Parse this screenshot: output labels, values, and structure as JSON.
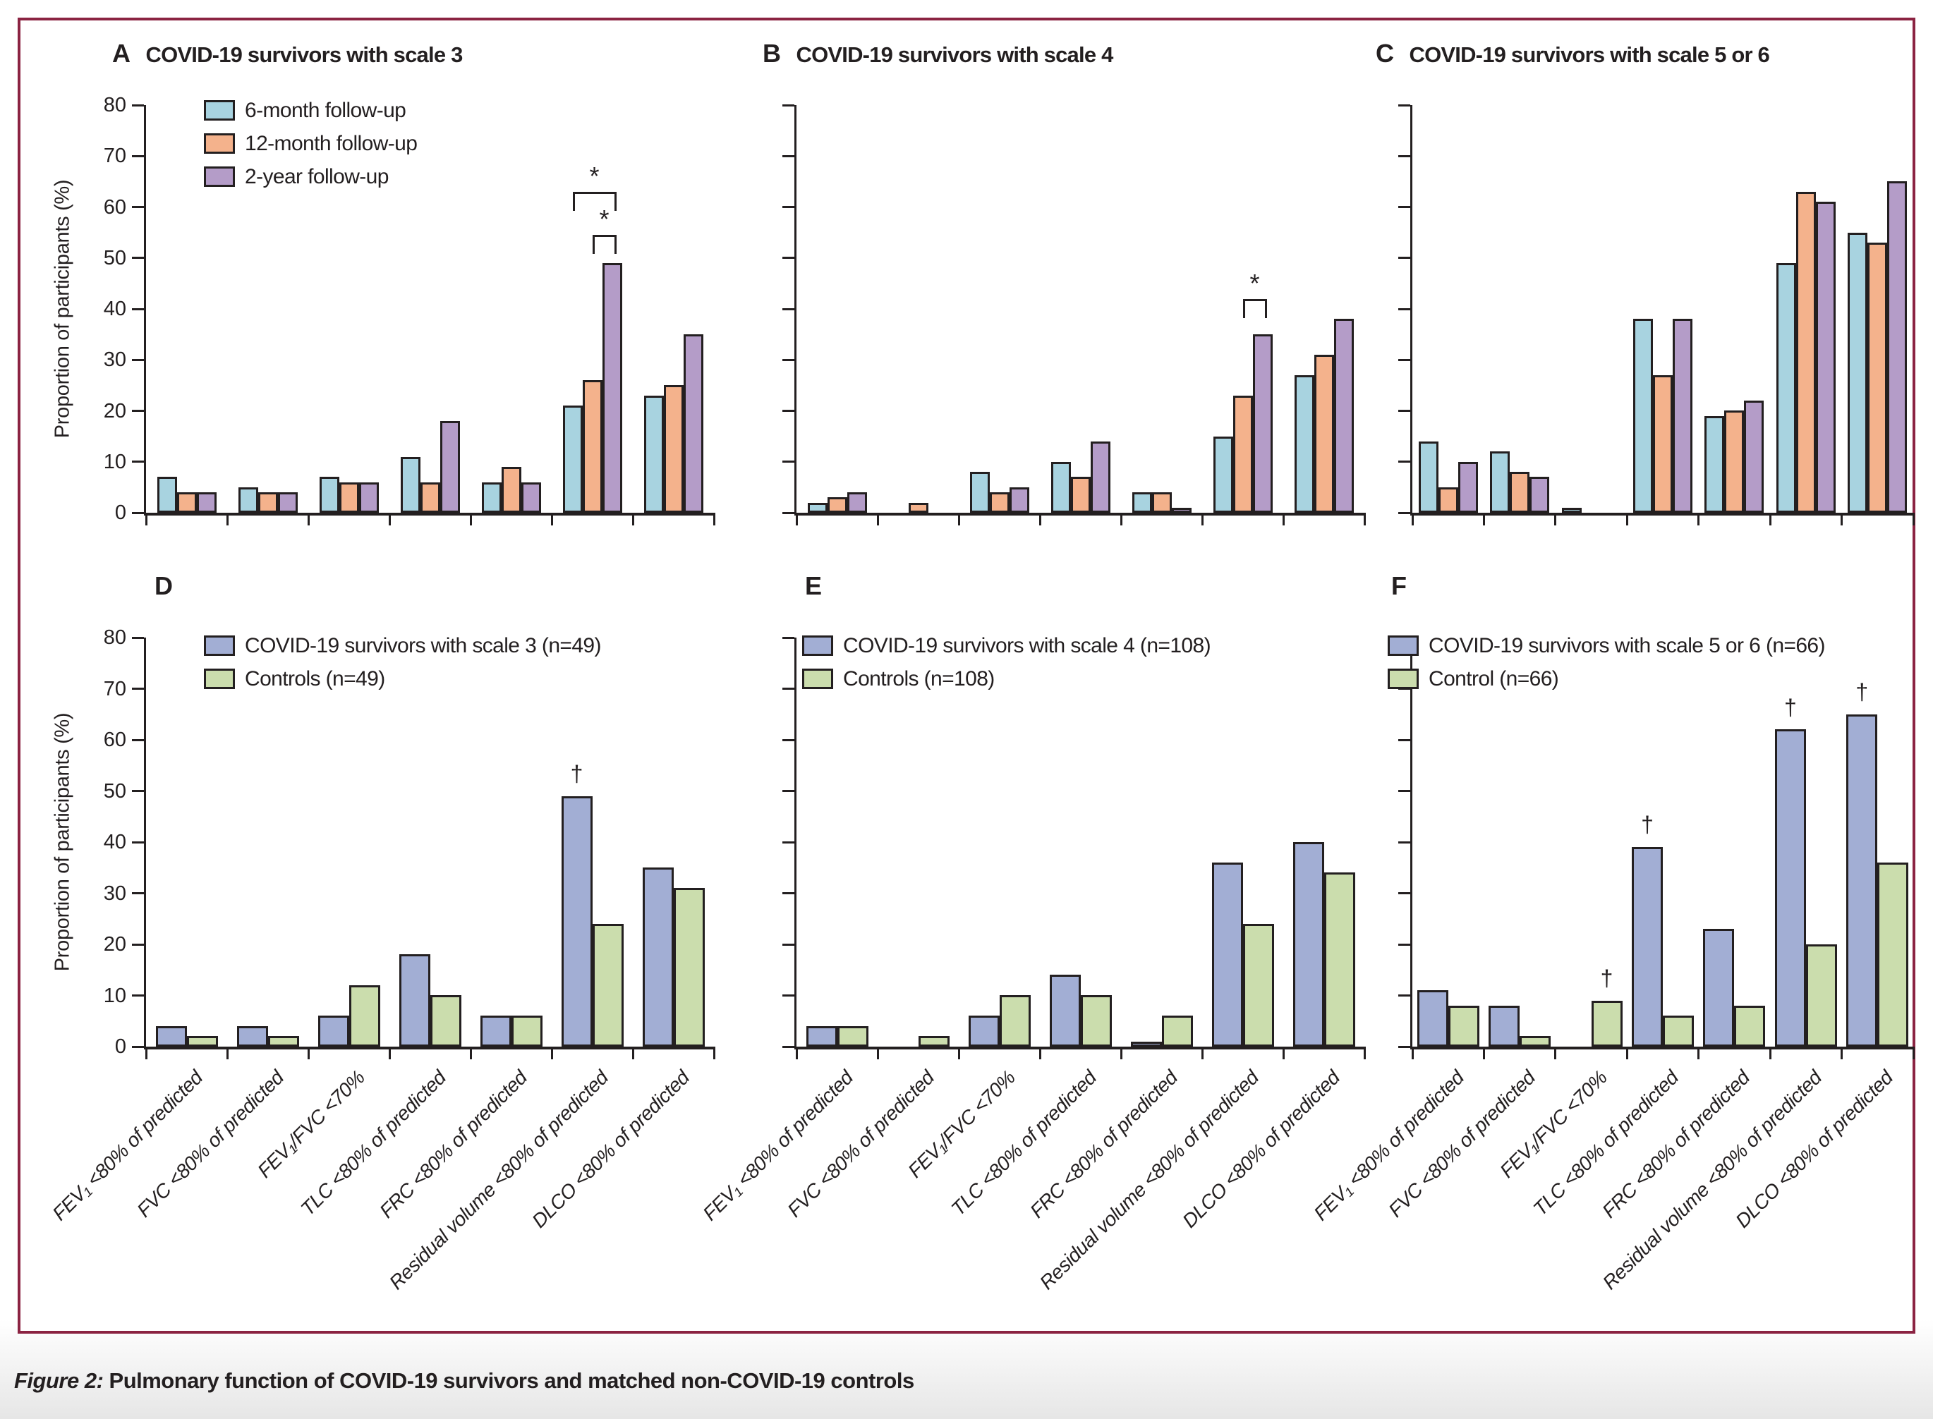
{
  "figure": {
    "caption_label": "Figure 2:",
    "caption_text": " Pulmonary function of COVID-19 survivors and matched non-COVID-19 controls",
    "border_color": "#8b2342"
  },
  "axes": {
    "y_label": "Proportion of participants (%)",
    "y_ticks": [
      0,
      10,
      20,
      30,
      40,
      50,
      60,
      70,
      80
    ],
    "y_max": 80
  },
  "chart_data": [
    {
      "panel": "A",
      "type": "bar",
      "title": "COVID-19 survivors with scale 3",
      "ylabel": "Proportion of participants (%)",
      "ylim": [
        0,
        80
      ],
      "grid": false,
      "legend": true,
      "show_y_labels": true,
      "show_x_labels": false,
      "categories": [
        "FEV₁ <80% of predicted",
        "FVC <80% of predicted",
        "FEV₁/FVC <70%",
        "TLC <80% of predicted",
        "FRC <80% of predicted",
        "Residual volume <80% of predicted",
        "DLCO <80% of predicted"
      ],
      "series": [
        {
          "name": "6-month follow-up",
          "color": "#a8d3e0",
          "values": [
            7,
            5,
            7,
            11,
            6,
            21,
            23
          ]
        },
        {
          "name": "12-month follow-up",
          "color": "#f4b28c",
          "values": [
            4,
            4,
            6,
            6,
            9,
            26,
            25
          ]
        },
        {
          "name": "2-year follow-up",
          "color": "#b49cc8",
          "values": [
            4,
            4,
            6,
            18,
            6,
            49,
            35
          ]
        }
      ],
      "brackets": [
        {
          "group": 5,
          "from": 0,
          "to": 2,
          "top": 63,
          "symbol": "*"
        },
        {
          "group": 5,
          "from": 1,
          "to": 2,
          "top": 54.5,
          "symbol": "*"
        }
      ],
      "daggers": []
    },
    {
      "panel": "B",
      "type": "bar",
      "title": "COVID-19 survivors with scale 4",
      "ylabel": "",
      "ylim": [
        0,
        80
      ],
      "grid": false,
      "legend": false,
      "show_y_labels": false,
      "show_x_labels": false,
      "categories": [
        "FEV₁ <80% of predicted",
        "FVC <80% of predicted",
        "FEV₁/FVC <70%",
        "TLC <80% of predicted",
        "FRC <80% of predicted",
        "Residual volume <80% of predicted",
        "DLCO <80% of predicted"
      ],
      "series": [
        {
          "name": "6-month follow-up",
          "color": "#a8d3e0",
          "values": [
            2,
            0,
            8,
            10,
            4,
            15,
            27
          ]
        },
        {
          "name": "12-month follow-up",
          "color": "#f4b28c",
          "values": [
            3,
            2,
            4,
            7,
            4,
            23,
            31
          ]
        },
        {
          "name": "2-year follow-up",
          "color": "#b49cc8",
          "values": [
            4,
            0,
            5,
            14,
            1,
            35,
            38
          ]
        }
      ],
      "brackets": [
        {
          "group": 5,
          "from": 1,
          "to": 2,
          "top": 42,
          "symbol": "*"
        }
      ],
      "daggers": []
    },
    {
      "panel": "C",
      "type": "bar",
      "title": "COVID-19 survivors with scale 5 or 6",
      "ylabel": "",
      "ylim": [
        0,
        80
      ],
      "grid": false,
      "legend": false,
      "show_y_labels": false,
      "show_x_labels": false,
      "categories": [
        "FEV₁ <80% of predicted",
        "FVC <80% of predicted",
        "FEV₁/FVC <70%",
        "TLC <80% of predicted",
        "FRC <80% of predicted",
        "Residual volume <80% of predicted",
        "DLCO <80% of predicted"
      ],
      "series": [
        {
          "name": "6-month follow-up",
          "color": "#a8d3e0",
          "values": [
            14,
            12,
            1,
            38,
            19,
            49,
            55
          ]
        },
        {
          "name": "12-month follow-up",
          "color": "#f4b28c",
          "values": [
            5,
            8,
            0,
            27,
            20,
            63,
            53
          ]
        },
        {
          "name": "2-year follow-up",
          "color": "#b49cc8",
          "values": [
            10,
            7,
            0,
            38,
            22,
            61,
            65
          ]
        }
      ],
      "brackets": [],
      "daggers": []
    },
    {
      "panel": "D",
      "type": "bar",
      "title": "",
      "ylabel": "Proportion of participants (%)",
      "ylim": [
        0,
        80
      ],
      "grid": false,
      "legend": true,
      "show_y_labels": true,
      "show_x_labels": true,
      "categories": [
        "FEV₁ <80% of predicted",
        "FVC <80% of predicted",
        "FEV₁/FVC <70%",
        "TLC <80% of predicted",
        "FRC <80% of predicted",
        "Residual volume <80% of predicted",
        "DLCO <80% of predicted"
      ],
      "series": [
        {
          "name": "COVID-19 survivors with scale 3 (n=49)",
          "color": "#a2aed4",
          "values": [
            4,
            4,
            6,
            18,
            6,
            49,
            35
          ]
        },
        {
          "name": "Controls (n=49)",
          "color": "#cbddad",
          "values": [
            2,
            2,
            12,
            10,
            6,
            24,
            31
          ]
        }
      ],
      "brackets": [],
      "daggers": [
        {
          "group": 5,
          "series": 0,
          "symbol": "†"
        }
      ]
    },
    {
      "panel": "E",
      "type": "bar",
      "title": "",
      "ylabel": "",
      "ylim": [
        0,
        80
      ],
      "grid": false,
      "legend": true,
      "show_y_labels": false,
      "show_x_labels": true,
      "categories": [
        "FEV₁ <80% of predicted",
        "FVC <80% of predicted",
        "FEV₁/FVC <70%",
        "TLC <80% of predicted",
        "FRC <80% of predicted",
        "Residual volume <80% of predicted",
        "DLCO <80% of predicted"
      ],
      "series": [
        {
          "name": "COVID-19 survivors with scale 4 (n=108)",
          "color": "#a2aed4",
          "values": [
            4,
            0,
            6,
            14,
            1,
            36,
            40
          ]
        },
        {
          "name": "Controls (n=108)",
          "color": "#cbddad",
          "values": [
            4,
            2,
            10,
            10,
            6,
            24,
            34
          ]
        }
      ],
      "brackets": [],
      "daggers": []
    },
    {
      "panel": "F",
      "type": "bar",
      "title": "",
      "ylabel": "",
      "ylim": [
        0,
        80
      ],
      "grid": false,
      "legend": true,
      "show_y_labels": false,
      "show_x_labels": true,
      "categories": [
        "FEV₁ <80% of predicted",
        "FVC <80% of predicted",
        "FEV₁/FVC <70%",
        "TLC <80% of predicted",
        "FRC <80% of predicted",
        "Residual volume <80% of predicted",
        "DLCO <80% of predicted"
      ],
      "series": [
        {
          "name": "COVID-19 survivors with scale 5 or 6 (n=66)",
          "color": "#a2aed4",
          "values": [
            11,
            8,
            0,
            39,
            23,
            62,
            65
          ]
        },
        {
          "name": "Control (n=66)",
          "color": "#cbddad",
          "values": [
            8,
            2,
            9,
            6,
            8,
            20,
            36
          ]
        }
      ],
      "brackets": [],
      "daggers": [
        {
          "group": 2,
          "series": 1,
          "symbol": "†"
        },
        {
          "group": 3,
          "series": 0,
          "symbol": "†"
        },
        {
          "group": 5,
          "series": 0,
          "symbol": "†"
        },
        {
          "group": 6,
          "series": 0,
          "symbol": "†"
        }
      ]
    }
  ]
}
